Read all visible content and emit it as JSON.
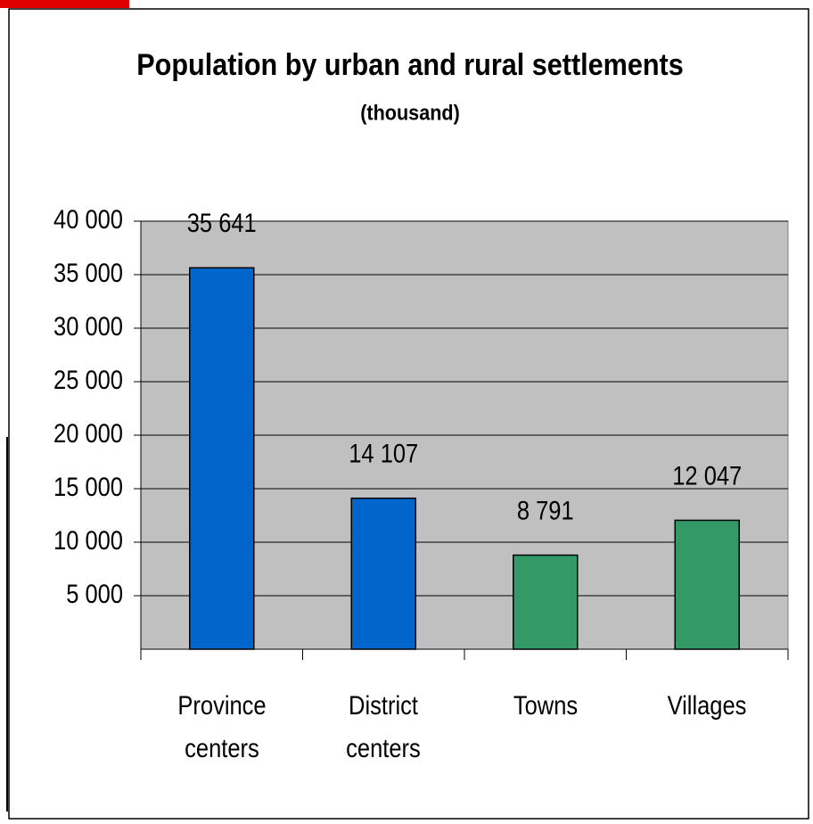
{
  "chart_data": {
    "type": "bar",
    "title": "Population by urban and rural settlements",
    "subtitle": "(thousand)",
    "categories": [
      "Province centers",
      "District centers",
      "Towns",
      "Villages"
    ],
    "values": [
      35641,
      14107,
      8791,
      12047
    ],
    "value_labels": [
      "35 641",
      "14 107",
      "8 791",
      "12 047"
    ],
    "colors": [
      "#0066cc",
      "#0066cc",
      "#339966",
      "#339966"
    ],
    "ylim": [
      0,
      40000
    ],
    "yticks": [
      {
        "value": 5000,
        "label": "5 000"
      },
      {
        "value": 10000,
        "label": "10 000"
      },
      {
        "value": 15000,
        "label": "15 000"
      },
      {
        "value": 20000,
        "label": "20 000"
      },
      {
        "value": 25000,
        "label": "25 000"
      },
      {
        "value": 30000,
        "label": "30 000"
      },
      {
        "value": 35000,
        "label": "35 000"
      },
      {
        "value": 40000,
        "label": "40 000"
      }
    ],
    "grid": true
  }
}
